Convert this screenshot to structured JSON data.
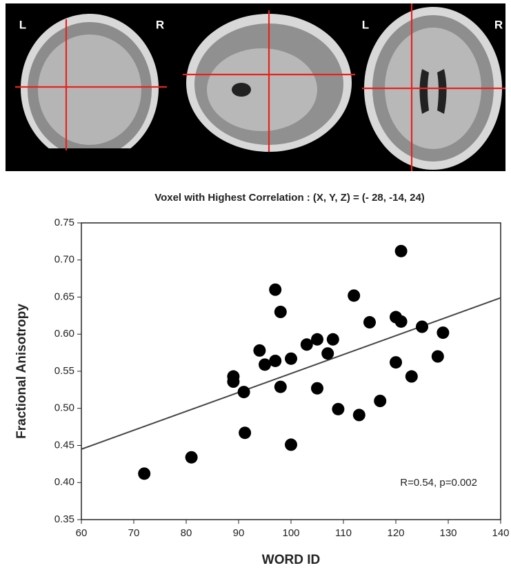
{
  "brain_panel": {
    "coronal_labels": [
      "L",
      "R"
    ],
    "axial_labels": [
      "L",
      "R"
    ]
  },
  "chart_data": {
    "type": "scatter",
    "title": "Voxel with Highest Correlation : (X, Y, Z) = (- 28, -14, 24)",
    "x_label": "WORD ID",
    "y_label": "Fractional Anisotropy",
    "annotation": "R=0.54, p=0.002",
    "color": "#000000",
    "x": [
      72,
      81,
      89,
      89,
      91,
      91.2,
      94,
      95,
      97,
      97,
      98,
      98,
      100,
      100,
      103,
      105,
      105,
      107,
      108,
      109,
      112,
      113,
      115,
      117,
      120,
      120,
      121,
      121,
      123,
      125,
      128,
      129
    ],
    "values": [
      0.412,
      0.434,
      0.543,
      0.536,
      0.522,
      0.467,
      0.578,
      0.559,
      0.66,
      0.564,
      0.63,
      0.529,
      0.567,
      0.451,
      0.586,
      0.593,
      0.527,
      0.574,
      0.593,
      0.499,
      0.652,
      0.491,
      0.616,
      0.51,
      0.623,
      0.562,
      0.712,
      0.617,
      0.543,
      0.61,
      0.57,
      0.602
    ],
    "fit_line": {
      "x": [
        60,
        140
      ],
      "y": [
        0.445,
        0.649
      ],
      "color": "#444444"
    },
    "xlim": [
      60,
      140
    ],
    "ylim": [
      0.35,
      0.75
    ],
    "xticks": [
      60,
      70,
      80,
      90,
      100,
      110,
      120,
      130,
      140
    ],
    "yticks": [
      0.35,
      {
        "value": 0.4,
        "label": "0.40"
      },
      0.45,
      {
        "value": 0.5,
        "label": "0.50"
      },
      0.55,
      {
        "value": 0.6,
        "label": "0.60"
      },
      0.65,
      {
        "value": 0.7,
        "label": "0.70"
      },
      0.75
    ]
  }
}
